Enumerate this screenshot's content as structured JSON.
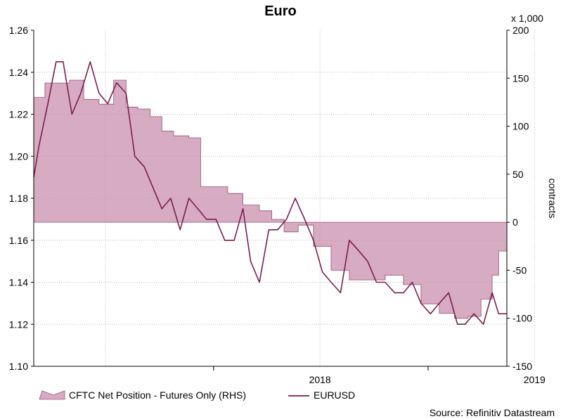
{
  "chart_data": {
    "type": "line",
    "title": "Euro",
    "x_ticks": [
      "2018",
      "2019"
    ],
    "x_range": [
      "2017-03-01",
      "2019-05-15"
    ],
    "left_axis": {
      "ylim": [
        1.1,
        1.26
      ],
      "ticks": [
        "1.10",
        "1.12",
        "1.14",
        "1.16",
        "1.18",
        "1.20",
        "1.22",
        "1.24",
        "1.26"
      ]
    },
    "right_axis": {
      "label": "contracts",
      "unit_label": "x 1,000",
      "ylim": [
        -150,
        200
      ],
      "ticks": [
        "-150",
        "-100",
        "-50",
        "0",
        "50",
        "100",
        "150",
        "200"
      ]
    },
    "grid": true,
    "legend_position": "bottom",
    "series": [
      {
        "name": "CFTC Net Position - Futures Only (RHS)",
        "axis": "right",
        "kind": "area",
        "color": "#c98fae",
        "x": [
          "2017-03-01",
          "2017-03-20",
          "2017-04-10",
          "2017-05-01",
          "2017-05-25",
          "2017-06-20",
          "2017-07-15",
          "2017-08-05",
          "2017-08-25",
          "2017-09-15",
          "2017-10-05",
          "2017-10-25",
          "2017-11-20",
          "2017-12-10",
          "2018-01-05",
          "2018-01-25",
          "2018-02-20",
          "2018-03-20",
          "2018-04-10",
          "2018-05-01",
          "2018-05-25",
          "2018-06-20",
          "2018-07-20",
          "2018-08-20",
          "2018-09-20",
          "2018-10-20",
          "2018-11-20",
          "2018-12-20",
          "2019-01-20",
          "2019-02-15",
          "2019-03-10",
          "2019-04-01",
          "2019-04-20",
          "2019-05-01",
          "2019-05-15"
        ],
        "values": [
          130,
          145,
          145,
          148,
          128,
          123,
          148,
          120,
          118,
          110,
          95,
          90,
          88,
          37,
          37,
          30,
          18,
          12,
          3,
          -10,
          -3,
          -25,
          -50,
          -60,
          -60,
          -55,
          -65,
          -85,
          -95,
          -100,
          -98,
          -80,
          -55,
          -30,
          -35
        ]
      },
      {
        "name": "EURUSD",
        "axis": "left",
        "kind": "line",
        "color": "#7a1e4f",
        "x": [
          "2017-03-01",
          "2017-03-10",
          "2017-03-25",
          "2017-04-08",
          "2017-04-20",
          "2017-05-05",
          "2017-05-20",
          "2017-06-05",
          "2017-06-20",
          "2017-07-05",
          "2017-07-20",
          "2017-08-05",
          "2017-08-20",
          "2017-09-05",
          "2017-09-20",
          "2017-10-05",
          "2017-10-20",
          "2017-11-05",
          "2017-11-20",
          "2017-12-05",
          "2017-12-20",
          "2018-01-05",
          "2018-01-20",
          "2018-02-05",
          "2018-02-20",
          "2018-03-05",
          "2018-03-20",
          "2018-04-05",
          "2018-04-20",
          "2018-05-05",
          "2018-05-20",
          "2018-06-05",
          "2018-06-20",
          "2018-07-05",
          "2018-07-20",
          "2018-08-05",
          "2018-08-20",
          "2018-09-05",
          "2018-09-20",
          "2018-10-05",
          "2018-10-20",
          "2018-11-05",
          "2018-11-20",
          "2018-12-05",
          "2018-12-20",
          "2019-01-05",
          "2019-01-20",
          "2019-02-05",
          "2019-02-20",
          "2019-03-05",
          "2019-03-20",
          "2019-04-05",
          "2019-04-20",
          "2019-05-01",
          "2019-05-15"
        ],
        "values": [
          1.19,
          1.205,
          1.225,
          1.245,
          1.245,
          1.22,
          1.23,
          1.245,
          1.23,
          1.225,
          1.235,
          1.23,
          1.2,
          1.195,
          1.185,
          1.175,
          1.18,
          1.165,
          1.18,
          1.175,
          1.17,
          1.17,
          1.16,
          1.16,
          1.175,
          1.15,
          1.14,
          1.165,
          1.165,
          1.17,
          1.18,
          1.17,
          1.16,
          1.145,
          1.14,
          1.135,
          1.16,
          1.155,
          1.15,
          1.14,
          1.14,
          1.135,
          1.135,
          1.14,
          1.13,
          1.125,
          1.13,
          1.135,
          1.12,
          1.12,
          1.125,
          1.12,
          1.135,
          1.125,
          1.125
        ]
      }
    ],
    "source": "Source: Refinitiv Datastream"
  }
}
